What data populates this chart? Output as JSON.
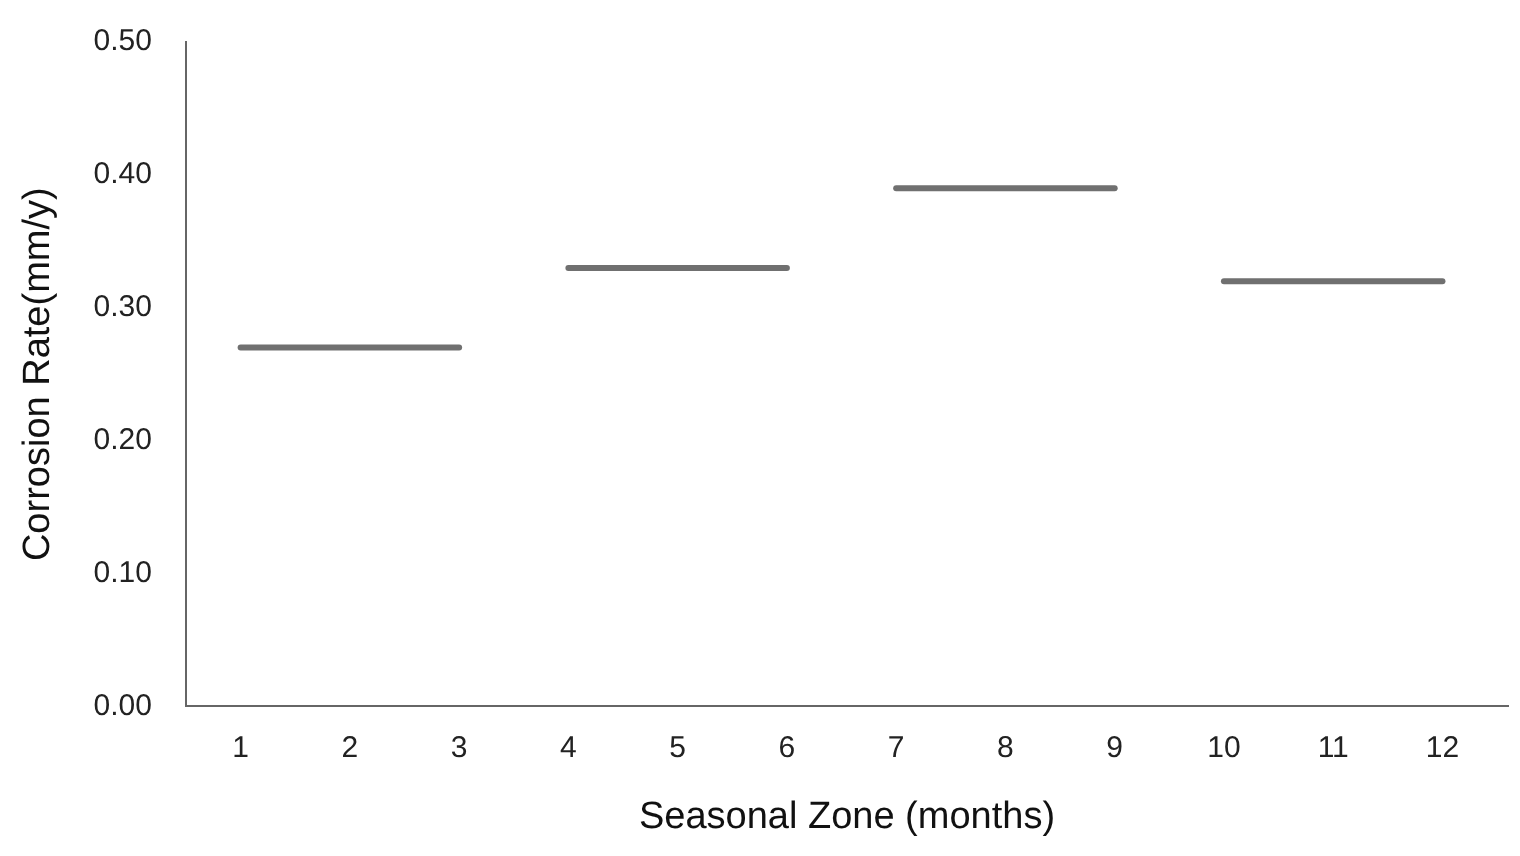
{
  "chart_data": {
    "type": "line",
    "xlabel": "Seasonal Zone (months)",
    "ylabel": "Corrosion Rate(mm/y)",
    "xlim": [
      0.5,
      12.6
    ],
    "xticks": [
      1,
      2,
      3,
      4,
      5,
      6,
      7,
      8,
      9,
      10,
      11,
      12
    ],
    "ylim": [
      0,
      0.5
    ],
    "yticks": [
      {
        "value": 0,
        "label": "0.00"
      },
      {
        "value": 0.1,
        "label": "0.10"
      },
      {
        "value": 0.2,
        "label": "0.20"
      },
      {
        "value": 0.3,
        "label": "0.30"
      },
      {
        "value": 0.4,
        "label": "0.40"
      },
      {
        "value": 0.5,
        "label": "0.50"
      }
    ],
    "grid": false,
    "legend": false,
    "marker": "none",
    "line_style": "solid",
    "series": [
      {
        "color": "#707070",
        "x": [
          1,
          3
        ],
        "values": [
          0.27,
          0.27
        ]
      },
      {
        "color": "#707070",
        "x": [
          4,
          6
        ],
        "values": [
          0.33,
          0.33
        ]
      },
      {
        "color": "#707070",
        "x": [
          7,
          9
        ],
        "values": [
          0.39,
          0.39
        ]
      },
      {
        "color": "#707070",
        "x": [
          10,
          12
        ],
        "values": [
          0.32,
          0.32
        ]
      }
    ]
  }
}
